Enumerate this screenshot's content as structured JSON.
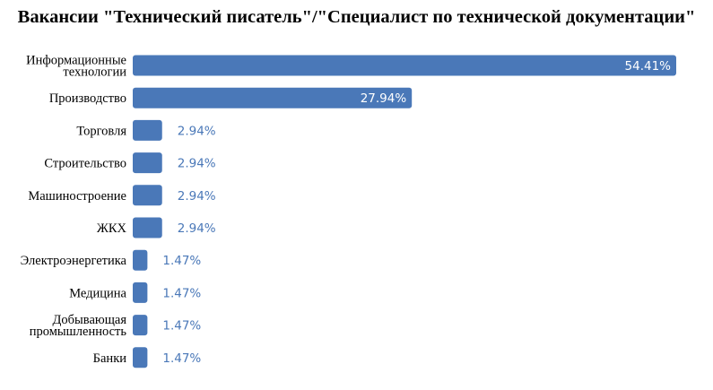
{
  "chart_data": {
    "type": "bar",
    "orientation": "horizontal",
    "title": "Вакансии \"Технический писатель\"/\"Специалист по технической документации\"",
    "xlabel": "",
    "ylabel": "",
    "categories": [
      [
        "Информационные",
        "технологии"
      ],
      [
        "Производство"
      ],
      [
        "Торговля"
      ],
      [
        "Строительство"
      ],
      [
        "Машиностроение"
      ],
      [
        "ЖКХ"
      ],
      [
        "Электроэнергетика"
      ],
      [
        "Медицина"
      ],
      [
        "Добывающая",
        "промышленность"
      ],
      [
        "Банки"
      ]
    ],
    "values": [
      54.41,
      27.94,
      2.94,
      2.94,
      2.94,
      2.94,
      1.47,
      1.47,
      1.47,
      1.47
    ],
    "data_labels": [
      "54.41%",
      "27.94%",
      "2.94%",
      "2.94%",
      "2.94%",
      "2.94%",
      "1.47%",
      "1.47%",
      "1.47%",
      "1.47%"
    ],
    "xlim": [
      0,
      54.41
    ],
    "grid": false,
    "legend": "none",
    "colors": {
      "bar": "#4a78b8",
      "label_inside": "#ffffff",
      "label_outside": "#4a78b8",
      "text": "#000000"
    }
  }
}
